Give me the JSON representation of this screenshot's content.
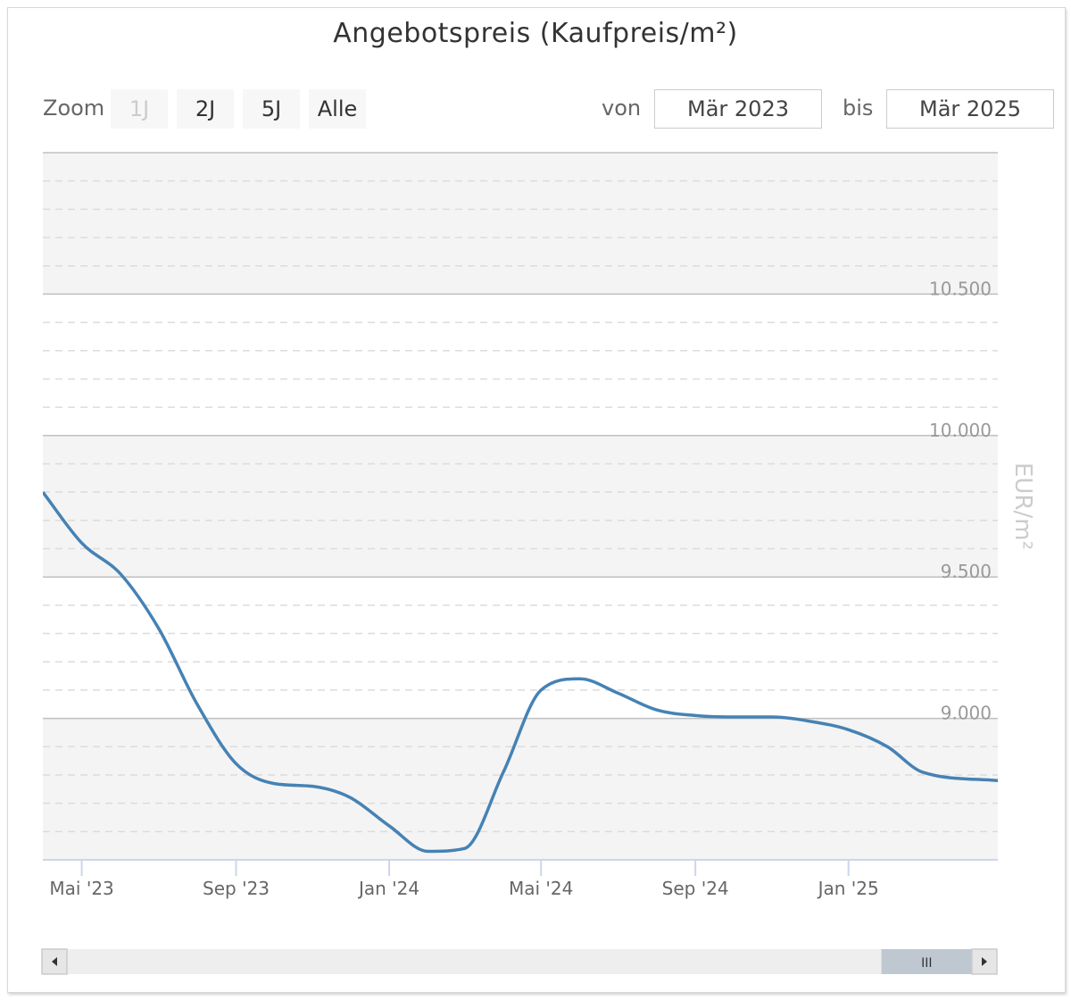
{
  "title": "Angebotspreis (Kaufpreis/m²)",
  "range_selector": {
    "zoom_label": "Zoom",
    "buttons": [
      "1J",
      "2J",
      "5J",
      "Alle"
    ],
    "disabled_button": "1J",
    "from_label": "von",
    "from_value": "Mär 2023",
    "to_label": "bis",
    "to_value": "Mär 2025"
  },
  "colors": {
    "line": "#4682b4",
    "band": "#f4f4f4",
    "grid": "#c0c0c0",
    "minor_grid": "#dcdcdc",
    "scrollbar_thumb": "#bfc8d1",
    "scrollbar_track": "#eeeeee"
  },
  "chart_data": {
    "type": "line",
    "title": "Angebotspreis (Kaufpreis/m²)",
    "xlabel": "",
    "ylabel": "EUR/m²",
    "xlim": [
      "2023-03-31",
      "2025-04-30"
    ],
    "ylim": [
      8500,
      11000
    ],
    "y_ticks": [
      9000,
      9500,
      10000,
      10500
    ],
    "y_tick_labels": [
      "9.000",
      "9.500",
      "10.000",
      "10.500"
    ],
    "y_axis_position": "right",
    "x_tick_dates": [
      "2023-05-01",
      "2023-09-01",
      "2024-01-01",
      "2024-05-01",
      "2024-09-01",
      "2025-01-01"
    ],
    "x_tick_labels": [
      "Mai '23",
      "Sep '23",
      "Jan '24",
      "Mai '24",
      "Sep '24",
      "Jan '25"
    ],
    "grid": true,
    "alternate_bands": true,
    "legend": "none",
    "series": [
      {
        "x": [
          "2023-03-31",
          "2023-05-01",
          "2023-06-01",
          "2023-07-01",
          "2023-08-01",
          "2023-09-01",
          "2023-10-01",
          "2023-11-01",
          "2023-12-01",
          "2024-01-01",
          "2024-02-01",
          "2024-03-01",
          "2024-04-01",
          "2024-05-01",
          "2024-06-01",
          "2024-07-01",
          "2024-08-01",
          "2024-09-01",
          "2024-10-01",
          "2024-11-01",
          "2024-12-01",
          "2025-01-01",
          "2025-02-01",
          "2025-03-01",
          "2025-04-30"
        ],
        "values": [
          9800,
          9620,
          9510,
          9320,
          9050,
          8840,
          8770,
          8760,
          8720,
          8620,
          8530,
          8540,
          8810,
          9100,
          9140,
          9090,
          9030,
          9010,
          9005,
          9005,
          8990,
          8960,
          8900,
          8810,
          8780
        ]
      }
    ]
  },
  "scrollbar": {
    "thumb_start": 0.9,
    "thumb_end": 1.0,
    "grip_label": "III"
  }
}
